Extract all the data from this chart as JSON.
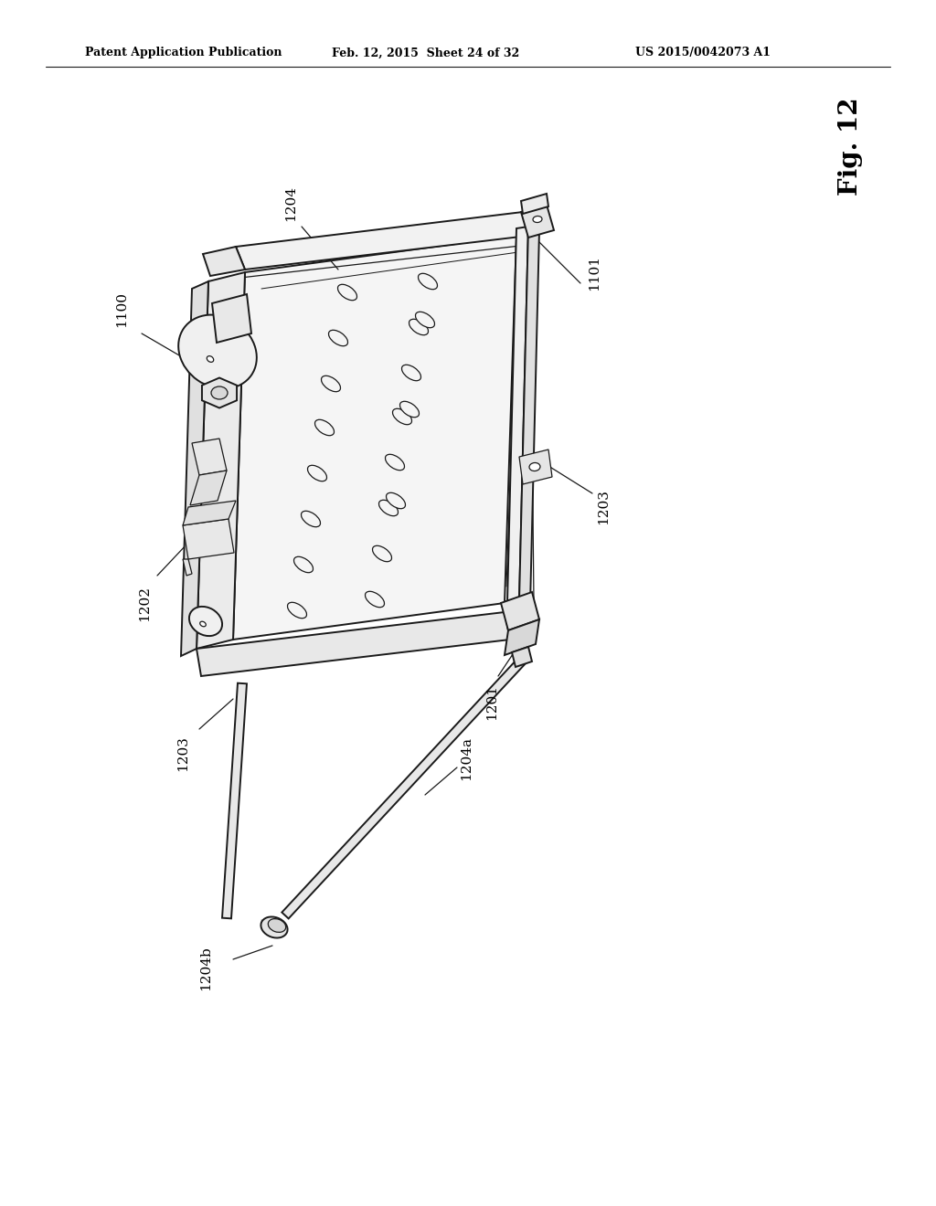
{
  "bg_color": "#ffffff",
  "header_left": "Patent Application Publication",
  "header_mid": "Feb. 12, 2015  Sheet 24 of 32",
  "header_right": "US 2015/0042073 A1",
  "fig_label": "Fig. 12",
  "line_color": "#1a1a1a",
  "text_color": "#000000",
  "lw_main": 1.4,
  "lw_thin": 0.9,
  "lw_thick": 2.0
}
